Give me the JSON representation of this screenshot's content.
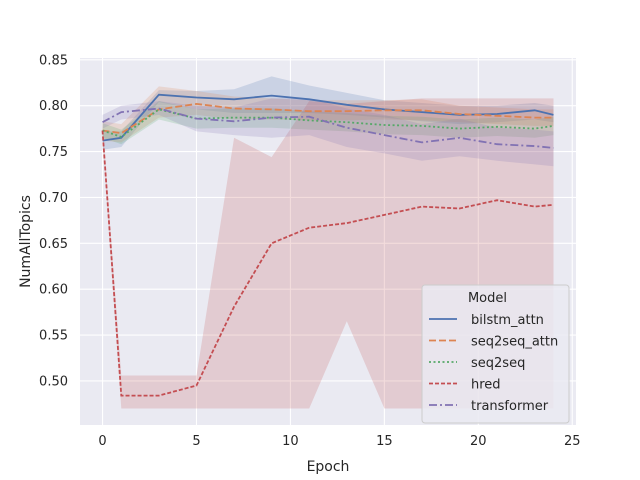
{
  "chart_data": {
    "type": "line",
    "title": "",
    "xlabel": "Epoch",
    "ylabel": "NumAllTopics",
    "xlim": [
      -1.2,
      25.2
    ],
    "ylim": [
      0.452,
      0.852
    ],
    "xticks": [
      0,
      5,
      10,
      15,
      20,
      25
    ],
    "xtick_labels": [
      "0",
      "5",
      "10",
      "15",
      "20",
      "25"
    ],
    "yticks": [
      0.5,
      0.55,
      0.6,
      0.65,
      0.7,
      0.75,
      0.8,
      0.85
    ],
    "ytick_labels": [
      "0.50",
      "0.55",
      "0.60",
      "0.65",
      "0.70",
      "0.75",
      "0.80",
      "0.85"
    ],
    "grid": true,
    "legend": {
      "title": "Model",
      "location": "lower-right"
    },
    "series": [
      {
        "name": "bilstm_attn",
        "color": "#4c72b0",
        "dash": "solid",
        "x": [
          0,
          1,
          3,
          5,
          7,
          9,
          11,
          13,
          15,
          17,
          19,
          21,
          23,
          24
        ],
        "values": [
          0.762,
          0.765,
          0.812,
          0.809,
          0.807,
          0.811,
          0.807,
          0.801,
          0.796,
          0.793,
          0.79,
          0.791,
          0.795,
          0.79
        ],
        "lower": [
          0.752,
          0.755,
          0.804,
          0.796,
          0.792,
          0.792,
          0.792,
          0.79,
          0.787,
          0.783,
          0.78,
          0.782,
          0.785,
          0.782
        ],
        "upper": [
          0.772,
          0.772,
          0.817,
          0.816,
          0.818,
          0.832,
          0.822,
          0.814,
          0.806,
          0.803,
          0.8,
          0.8,
          0.803,
          0.8
        ]
      },
      {
        "name": "seq2seq_attn",
        "color": "#dd8452",
        "dash": "dashed",
        "x": [
          0,
          1,
          3,
          5,
          7,
          9,
          11,
          13,
          15,
          17,
          19,
          21,
          23,
          24
        ],
        "values": [
          0.773,
          0.77,
          0.796,
          0.802,
          0.797,
          0.796,
          0.794,
          0.794,
          0.795,
          0.795,
          0.791,
          0.789,
          0.787,
          0.787
        ],
        "lower": [
          0.762,
          0.76,
          0.787,
          0.79,
          0.785,
          0.785,
          0.784,
          0.784,
          0.785,
          0.784,
          0.782,
          0.78,
          0.778,
          0.778
        ],
        "upper": [
          0.783,
          0.78,
          0.821,
          0.816,
          0.81,
          0.808,
          0.806,
          0.806,
          0.806,
          0.807,
          0.8,
          0.798,
          0.796,
          0.796
        ]
      },
      {
        "name": "seq2seq",
        "color": "#55a868",
        "dash": "dotted",
        "x": [
          0,
          1,
          3,
          5,
          7,
          9,
          11,
          13,
          15,
          17,
          19,
          21,
          23,
          24
        ],
        "values": [
          0.773,
          0.766,
          0.796,
          0.786,
          0.787,
          0.787,
          0.784,
          0.782,
          0.779,
          0.778,
          0.775,
          0.777,
          0.775,
          0.778
        ],
        "lower": [
          0.765,
          0.758,
          0.785,
          0.775,
          0.776,
          0.776,
          0.774,
          0.772,
          0.769,
          0.768,
          0.765,
          0.767,
          0.765,
          0.768
        ],
        "upper": [
          0.781,
          0.774,
          0.805,
          0.796,
          0.797,
          0.797,
          0.794,
          0.792,
          0.789,
          0.788,
          0.785,
          0.787,
          0.785,
          0.788
        ]
      },
      {
        "name": "hred",
        "color": "#c44e52",
        "dash": "densely-dashed",
        "x": [
          0,
          1,
          3,
          5,
          7,
          9,
          11,
          13,
          15,
          17,
          19,
          21,
          23,
          24
        ],
        "values": [
          0.773,
          0.484,
          0.484,
          0.495,
          0.581,
          0.65,
          0.667,
          0.672,
          0.681,
          0.69,
          0.688,
          0.697,
          0.69,
          0.692
        ],
        "lower": [
          0.765,
          0.47,
          0.47,
          0.47,
          0.47,
          0.47,
          0.47,
          0.565,
          0.47,
          0.47,
          0.47,
          0.47,
          0.47,
          0.47
        ],
        "upper": [
          0.781,
          0.506,
          0.506,
          0.506,
          0.765,
          0.744,
          0.805,
          0.802,
          0.805,
          0.808,
          0.808,
          0.808,
          0.808,
          0.808
        ]
      },
      {
        "name": "transformer",
        "color": "#8172b3",
        "dash": "dash-dot",
        "x": [
          0,
          1,
          3,
          5,
          7,
          9,
          11,
          13,
          15,
          17,
          19,
          21,
          23,
          24
        ],
        "values": [
          0.782,
          0.793,
          0.797,
          0.786,
          0.783,
          0.787,
          0.788,
          0.776,
          0.768,
          0.76,
          0.765,
          0.758,
          0.756,
          0.754
        ],
        "lower": [
          0.775,
          0.785,
          0.79,
          0.772,
          0.768,
          0.765,
          0.768,
          0.755,
          0.748,
          0.74,
          0.745,
          0.74,
          0.736,
          0.734
        ],
        "upper": [
          0.79,
          0.8,
          0.805,
          0.8,
          0.798,
          0.808,
          0.808,
          0.797,
          0.79,
          0.78,
          0.786,
          0.776,
          0.774,
          0.772
        ]
      }
    ]
  }
}
